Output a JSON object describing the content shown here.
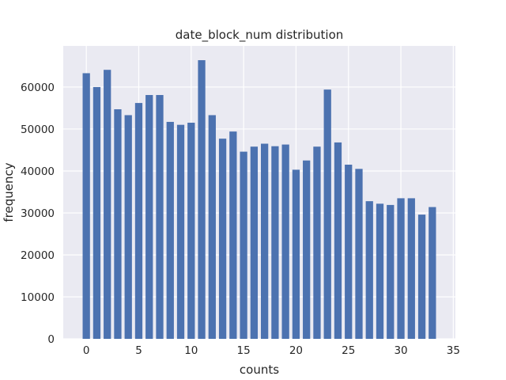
{
  "chart_data": {
    "type": "bar",
    "title": "date_block_num distribution",
    "xlabel": "counts",
    "ylabel": "frequency",
    "x": [
      0,
      1,
      2,
      3,
      4,
      5,
      6,
      7,
      8,
      9,
      10,
      11,
      12,
      13,
      14,
      15,
      16,
      17,
      18,
      19,
      20,
      21,
      22,
      23,
      24,
      25,
      26,
      27,
      28,
      29,
      30,
      31,
      32,
      33
    ],
    "values": [
      63300,
      60000,
      64100,
      54700,
      53300,
      56200,
      58100,
      58100,
      51700,
      51000,
      51500,
      66400,
      53300,
      47700,
      49400,
      44600,
      45800,
      46500,
      45900,
      46300,
      40300,
      42500,
      45800,
      59400,
      46800,
      41500,
      40500,
      32800,
      32200,
      31900,
      33500,
      33500,
      29600,
      31400
    ],
    "xlim": [
      -2.2,
      35.2
    ],
    "ylim": [
      0,
      69800
    ],
    "xticks": [
      0,
      5,
      10,
      15,
      20,
      25,
      30,
      35
    ],
    "yticks": [
      0,
      10000,
      20000,
      30000,
      40000,
      50000,
      60000
    ],
    "grid": true,
    "colors": {
      "bar": "#4c72b0",
      "background": "#eaeaf2",
      "grid": "#ffffff",
      "text": "#262626"
    }
  }
}
